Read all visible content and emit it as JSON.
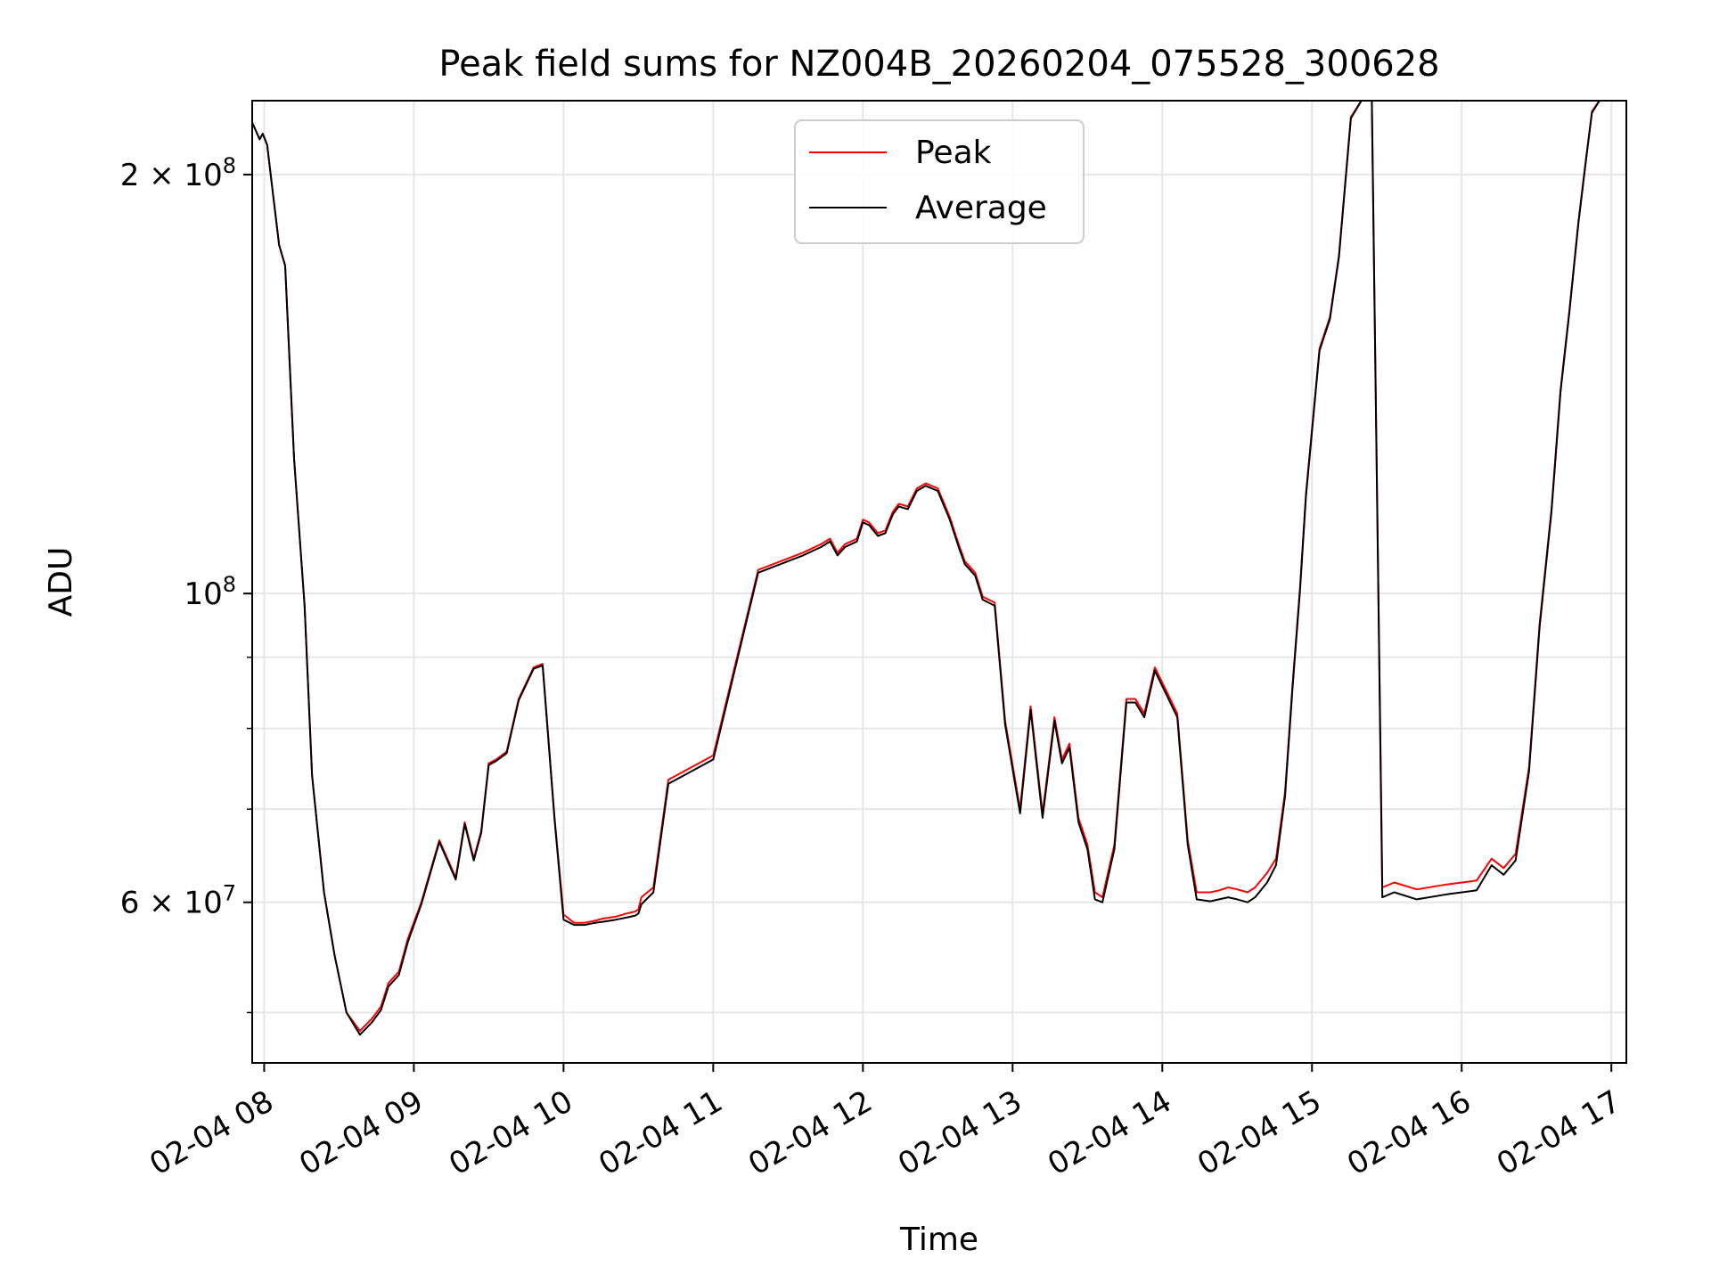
{
  "chart_data": {
    "type": "line",
    "title": "Peak field sums for NZ004B_20260204_075528_300628",
    "xlabel": "Time",
    "ylabel": "ADU",
    "xlim": [
      7.92,
      17.1
    ],
    "ylim": [
      46000000,
      226000000
    ],
    "yscale": "log",
    "grid": true,
    "legend_position": "upper center",
    "x_ticks": [
      {
        "value": 8,
        "label": "02-04 08"
      },
      {
        "value": 9,
        "label": "02-04 09"
      },
      {
        "value": 10,
        "label": "02-04 10"
      },
      {
        "value": 11,
        "label": "02-04 11"
      },
      {
        "value": 12,
        "label": "02-04 12"
      },
      {
        "value": 13,
        "label": "02-04 13"
      },
      {
        "value": 14,
        "label": "02-04 14"
      },
      {
        "value": 15,
        "label": "02-04 15"
      },
      {
        "value": 16,
        "label": "02-04 16"
      },
      {
        "value": 17,
        "label": "02-04 17"
      }
    ],
    "y_ticks": [
      {
        "value": 60000000,
        "base": "6",
        "exp": "7"
      },
      {
        "value": 100000000,
        "base": "",
        "exp": "8"
      },
      {
        "value": 200000000,
        "base": "2",
        "exp": "8"
      }
    ],
    "y_minor_grid": [
      50000000,
      70000000,
      80000000,
      90000000
    ],
    "times_sign": "×",
    "ten": "10",
    "series": [
      {
        "name": "Peak",
        "color": "#ff0000",
        "x": [
          7.92,
          7.97,
          7.99,
          8.02,
          8.1,
          8.14,
          8.2,
          8.27,
          8.32,
          8.4,
          8.47,
          8.55,
          8.64,
          8.72,
          8.78,
          8.83,
          8.9,
          8.96,
          9.05,
          9.17,
          9.28,
          9.34,
          9.4,
          9.45,
          9.5,
          9.55,
          9.62,
          9.7,
          9.8,
          9.86,
          9.94,
          10.0,
          10.07,
          10.14,
          10.21,
          10.26,
          10.35,
          10.42,
          10.48,
          10.5,
          10.52,
          10.6,
          10.7,
          11.0,
          11.3,
          11.6,
          11.72,
          11.78,
          11.83,
          11.88,
          11.96,
          12.0,
          12.04,
          12.1,
          12.15,
          12.2,
          12.24,
          12.3,
          12.36,
          12.42,
          12.5,
          12.58,
          12.64,
          12.68,
          12.75,
          12.8,
          12.88,
          12.95,
          13.05,
          13.12,
          13.2,
          13.28,
          13.33,
          13.38,
          13.44,
          13.5,
          13.55,
          13.6,
          13.68,
          13.76,
          13.82,
          13.88,
          13.95,
          14.03,
          14.1,
          14.17,
          14.23,
          14.32,
          14.38,
          14.44,
          14.5,
          14.57,
          14.62,
          14.7,
          14.76,
          14.82,
          14.87,
          14.92,
          14.96,
          15.05,
          15.12,
          15.18,
          15.26,
          15.33,
          15.4,
          15.47,
          15.55,
          15.7,
          15.9,
          16.1,
          16.2,
          16.28,
          16.36,
          16.45,
          16.52,
          16.6,
          16.66,
          16.72,
          16.78,
          16.83,
          16.87,
          16.92,
          17.0
        ],
        "y": [
          218000000,
          212000000,
          214000000,
          210000000,
          178000000,
          172000000,
          125000000,
          98000000,
          74000000,
          61000000,
          55000000,
          50000000,
          48500000,
          49500000,
          50500000,
          52500000,
          53500000,
          56500000,
          60000000,
          66500000,
          62500000,
          68500000,
          64500000,
          67500000,
          75500000,
          76000000,
          77000000,
          84000000,
          88500000,
          89000000,
          69000000,
          58800000,
          58000000,
          58000000,
          58200000,
          58400000,
          58600000,
          58900000,
          59100000,
          59300000,
          60500000,
          61500000,
          73500000,
          76500000,
          104000000,
          107000000,
          108500000,
          109500000,
          107000000,
          108500000,
          109500000,
          113000000,
          112500000,
          110500000,
          111000000,
          114500000,
          116000000,
          115500000,
          119000000,
          120000000,
          119000000,
          113500000,
          108500000,
          105500000,
          103500000,
          99500000,
          98500000,
          81000000,
          70000000,
          83000000,
          69500000,
          81500000,
          76000000,
          78000000,
          69000000,
          66000000,
          61000000,
          60500000,
          66000000,
          84000000,
          84000000,
          82000000,
          88500000,
          85000000,
          82000000,
          66500000,
          61000000,
          61000000,
          61200000,
          61500000,
          61300000,
          61000000,
          61500000,
          63000000,
          64500000,
          72000000,
          86000000,
          101000000,
          118000000,
          150000000,
          158000000,
          175000000,
          220000000,
          226000000,
          226000000,
          61500000,
          62000000,
          61300000,
          61800000,
          62200000,
          64500000,
          63500000,
          65000000,
          75000000,
          95000000,
          115000000,
          140000000,
          160000000,
          185000000,
          205000000,
          222000000,
          226000000,
          226000000
        ]
      },
      {
        "name": "Average",
        "color": "#000000",
        "x": [
          7.92,
          7.97,
          7.99,
          8.02,
          8.1,
          8.14,
          8.2,
          8.27,
          8.32,
          8.4,
          8.47,
          8.55,
          8.64,
          8.72,
          8.78,
          8.83,
          8.9,
          8.96,
          9.05,
          9.17,
          9.28,
          9.34,
          9.4,
          9.45,
          9.5,
          9.55,
          9.62,
          9.7,
          9.8,
          9.86,
          9.94,
          10.0,
          10.07,
          10.14,
          10.21,
          10.26,
          10.35,
          10.42,
          10.48,
          10.5,
          10.52,
          10.6,
          10.7,
          11.0,
          11.3,
          11.6,
          11.72,
          11.78,
          11.83,
          11.88,
          11.96,
          12.0,
          12.04,
          12.1,
          12.15,
          12.2,
          12.24,
          12.3,
          12.36,
          12.42,
          12.5,
          12.58,
          12.64,
          12.68,
          12.75,
          12.8,
          12.88,
          12.95,
          13.05,
          13.12,
          13.2,
          13.28,
          13.33,
          13.38,
          13.44,
          13.5,
          13.55,
          13.6,
          13.68,
          13.76,
          13.82,
          13.88,
          13.95,
          14.03,
          14.1,
          14.17,
          14.23,
          14.32,
          14.38,
          14.44,
          14.5,
          14.57,
          14.62,
          14.7,
          14.76,
          14.82,
          14.87,
          14.92,
          14.96,
          15.05,
          15.12,
          15.18,
          15.26,
          15.33,
          15.4,
          15.47,
          15.55,
          15.7,
          15.9,
          16.1,
          16.2,
          16.28,
          16.36,
          16.45,
          16.52,
          16.6,
          16.66,
          16.72,
          16.78,
          16.83,
          16.87,
          16.92,
          17.0
        ],
        "y": [
          218000000,
          212000000,
          214000000,
          210000000,
          178000000,
          172000000,
          125000000,
          98000000,
          74000000,
          61000000,
          55000000,
          50000000,
          48200000,
          49200000,
          50200000,
          52200000,
          53200000,
          56200000,
          59800000,
          66300000,
          62300000,
          68300000,
          64300000,
          67300000,
          75300000,
          75800000,
          76800000,
          83800000,
          88300000,
          88800000,
          68800000,
          58300000,
          57800000,
          57800000,
          58000000,
          58100000,
          58300000,
          58500000,
          58700000,
          58900000,
          59800000,
          61000000,
          73000000,
          76000000,
          103500000,
          106500000,
          108000000,
          109000000,
          106500000,
          108000000,
          109000000,
          112500000,
          112000000,
          110000000,
          110500000,
          114000000,
          115500000,
          115000000,
          118500000,
          119500000,
          118500000,
          113000000,
          108000000,
          105000000,
          103000000,
          99000000,
          98000000,
          80500000,
          69500000,
          82500000,
          69000000,
          81000000,
          75500000,
          77500000,
          68500000,
          65500000,
          60300000,
          60000000,
          65500000,
          83500000,
          83500000,
          81500000,
          88000000,
          84500000,
          81500000,
          66000000,
          60300000,
          60100000,
          60300000,
          60500000,
          60300000,
          60000000,
          60500000,
          62000000,
          63800000,
          71500000,
          85500000,
          100500000,
          117500000,
          149500000,
          157500000,
          174500000,
          219500000,
          226000000,
          226000000,
          60500000,
          61000000,
          60300000,
          60800000,
          61200000,
          63800000,
          62800000,
          64300000,
          74500000,
          94500000,
          114500000,
          139500000,
          159500000,
          184500000,
          204500000,
          221500000,
          226000000,
          226000000
        ]
      }
    ]
  }
}
